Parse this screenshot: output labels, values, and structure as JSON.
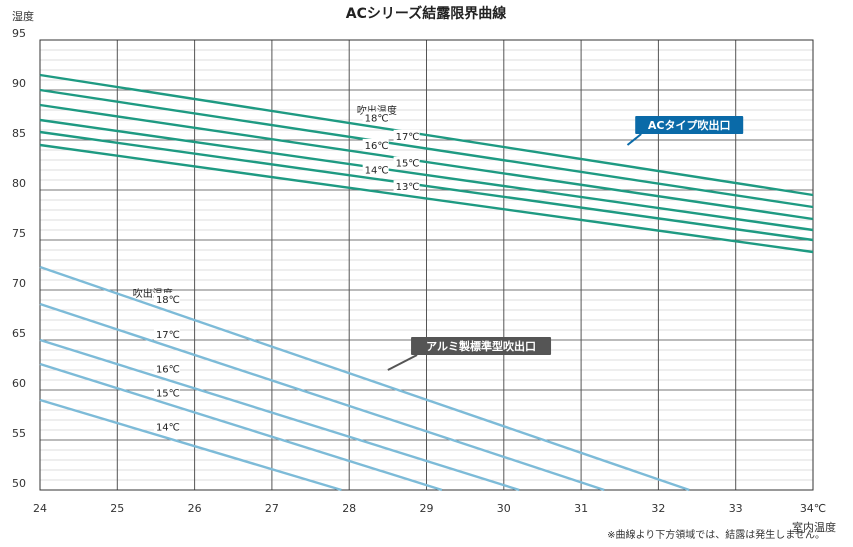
{
  "chart_data": {
    "type": "line",
    "title": "ACシリーズ結露限界曲線",
    "ylabel": "湿度",
    "xlabel": "室内温度",
    "x_ticks": [
      "24",
      "25",
      "26",
      "27",
      "28",
      "29",
      "30",
      "31",
      "32",
      "33",
      "34℃"
    ],
    "y_ticks": [
      "95",
      "90",
      "85",
      "80",
      "75",
      "70",
      "65",
      "60",
      "55",
      "50"
    ],
    "xlim": [
      24,
      34
    ],
    "ylim": [
      50,
      95
    ],
    "grid": true,
    "groups": [
      {
        "name": "ACタイプ吹出口",
        "header": "吹出温度",
        "color": "#1e9a82",
        "series": [
          {
            "name": "18℃",
            "x": [
              24,
              34
            ],
            "y": [
              91.5,
              79.5
            ]
          },
          {
            "name": "17℃",
            "x": [
              24,
              34
            ],
            "y": [
              90.0,
              78.3
            ]
          },
          {
            "name": "16℃",
            "x": [
              24,
              34
            ],
            "y": [
              88.5,
              77.1
            ]
          },
          {
            "name": "15℃",
            "x": [
              24,
              34
            ],
            "y": [
              87.0,
              76.0
            ]
          },
          {
            "name": "14℃",
            "x": [
              24,
              34
            ],
            "y": [
              85.8,
              75.0
            ]
          },
          {
            "name": "13℃",
            "x": [
              24,
              34
            ],
            "y": [
              84.5,
              73.8
            ]
          }
        ]
      },
      {
        "name": "アルミ製標準型吹出口",
        "header": "吹出温度",
        "color": "#7dbbd8",
        "series": [
          {
            "name": "18℃",
            "x": [
              24,
              32.4
            ],
            "y": [
              72.3,
              50.0
            ]
          },
          {
            "name": "17℃",
            "x": [
              24,
              31.3
            ],
            "y": [
              68.6,
              50.0
            ]
          },
          {
            "name": "16℃",
            "x": [
              24,
              30.2
            ],
            "y": [
              65.0,
              50.0
            ]
          },
          {
            "name": "15℃",
            "x": [
              24,
              29.2
            ],
            "y": [
              62.6,
              50.0
            ]
          },
          {
            "name": "14℃",
            "x": [
              24,
              27.9
            ],
            "y": [
              59.0,
              50.0
            ]
          }
        ]
      }
    ]
  },
  "footnote": "※曲線より下方領域では、結露は発生しません。"
}
